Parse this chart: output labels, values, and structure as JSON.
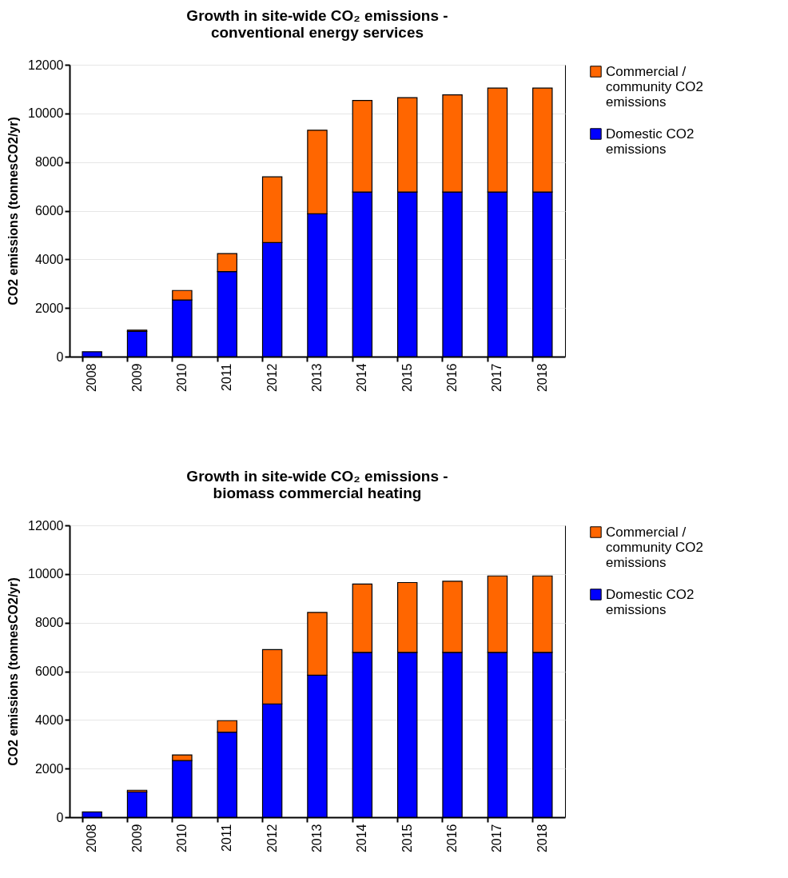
{
  "chart_data": [
    {
      "type": "bar",
      "title": "Growth in site-wide CO₂ emissions -\nconventional energy services",
      "ylabel": "CO2 emissions (tonnesCO2/yr)",
      "categories": [
        "2008",
        "2009",
        "2010",
        "2011",
        "2012",
        "2013",
        "2014",
        "2015",
        "2016",
        "2017",
        "2018"
      ],
      "stacked": true,
      "ylim": [
        0,
        12000
      ],
      "yticks": [
        0,
        2000,
        4000,
        6000,
        8000,
        10000,
        12000
      ],
      "grid": "y",
      "legend": "top right",
      "series": [
        {
          "name": "Domestic CO2 emissions",
          "color": "#0000ff",
          "values": [
            200,
            1040,
            2330,
            3500,
            4690,
            5870,
            6770,
            6770,
            6770,
            6770,
            6770
          ]
        },
        {
          "name": "Commercial / community CO2 emissions",
          "color": "#ff6600",
          "values": [
            null,
            50,
            390,
            740,
            2700,
            3440,
            3760,
            3880,
            3990,
            4270,
            4270
          ]
        }
      ]
    },
    {
      "type": "bar",
      "title": "Growth in site-wide CO₂ emissions -\nbiomass commercial heating",
      "ylabel": "CO2 emissions (tonnesCO2/yr)",
      "categories": [
        "2008",
        "2009",
        "2010",
        "2011",
        "2012",
        "2013",
        "2014",
        "2015",
        "2016",
        "2017",
        "2018"
      ],
      "stacked": true,
      "ylim": [
        0,
        12000
      ],
      "yticks": [
        0,
        2000,
        4000,
        6000,
        8000,
        10000,
        12000
      ],
      "grid": "y",
      "legend": "top right",
      "series": [
        {
          "name": "Domestic CO2 emissions",
          "color": "#0000ff",
          "values": [
            220,
            1040,
            2330,
            3500,
            4660,
            5840,
            6780,
            6780,
            6780,
            6780,
            6780
          ]
        },
        {
          "name": "Commercial / community CO2 emissions",
          "color": "#ff6600",
          "values": [
            null,
            70,
            230,
            470,
            2230,
            2580,
            2810,
            2870,
            2920,
            3140,
            3140
          ]
        }
      ]
    }
  ]
}
